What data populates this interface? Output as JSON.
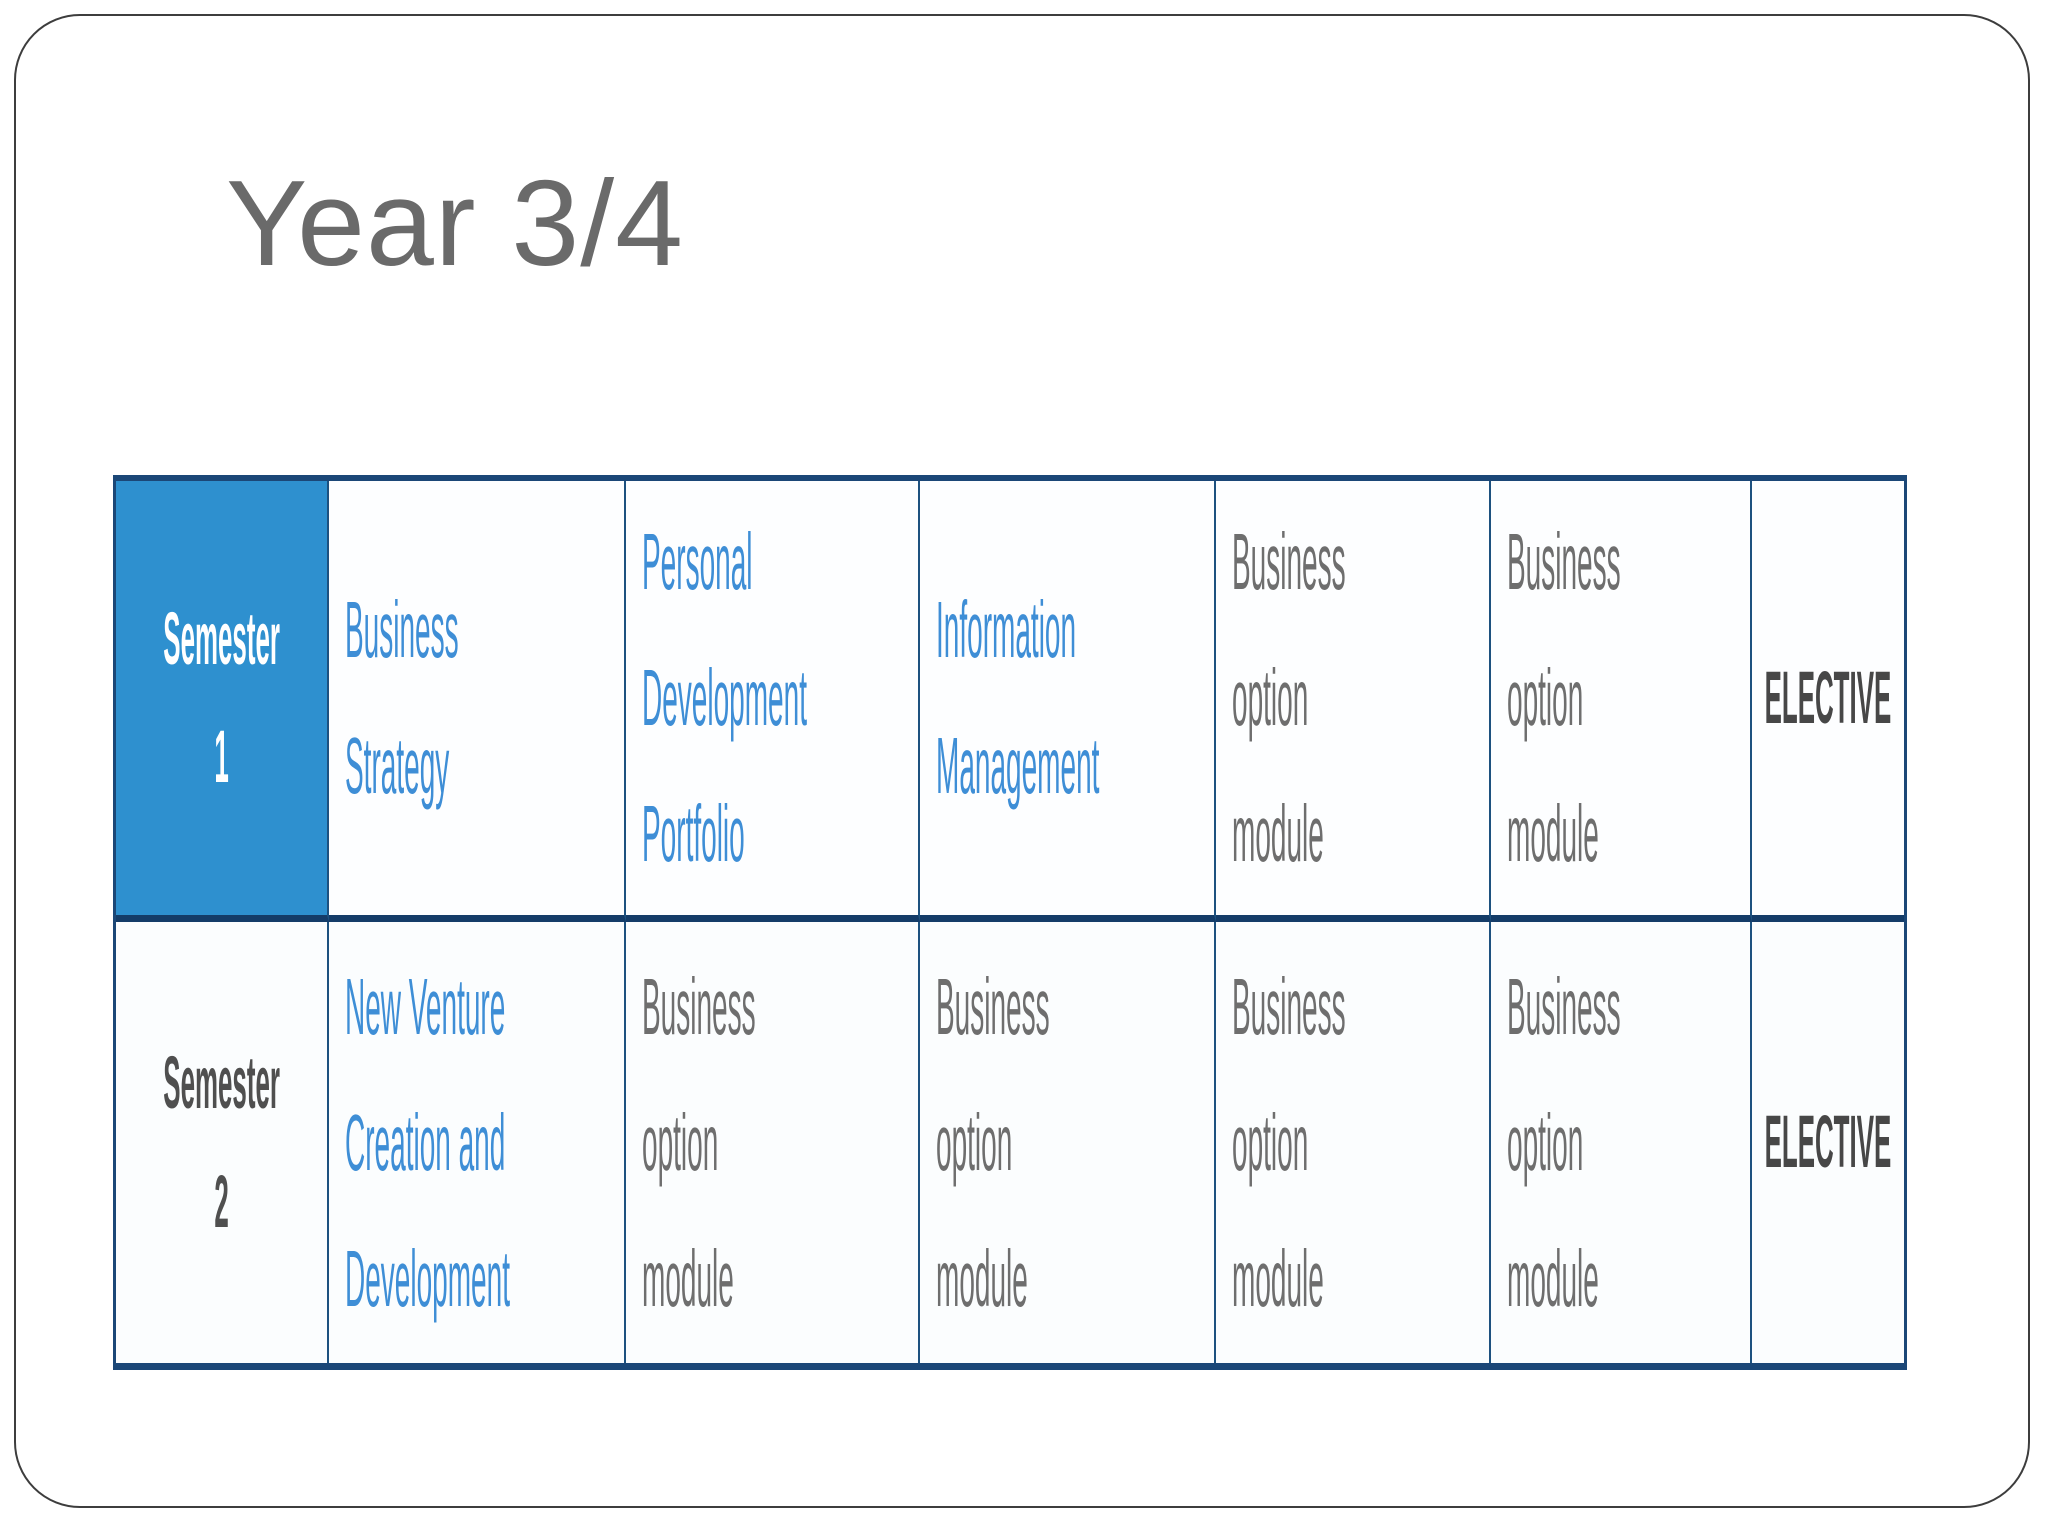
{
  "slide": {
    "title": "Year 3/4"
  },
  "colors": {
    "header_blue": "#2e90cf",
    "module_link_blue": "#3e8ed6",
    "module_text_gray": "#6e6e6e",
    "elective_text": "#474747",
    "table_border_navy": "#16395f",
    "semester2_bg": "#f4f4f3",
    "title_gray": "#6a6a6a"
  },
  "table": {
    "rows": [
      {
        "header": "Semester 1",
        "cells": [
          {
            "text": "Business Strategy"
          },
          {
            "text": "Personal\nDevelopment\nPortfolio"
          },
          {
            "text": "Information\nManagement"
          },
          {
            "text": "Business option\nmodule"
          },
          {
            "text": "Business option\nmodule"
          },
          {
            "text": "ELECTIVE"
          }
        ]
      },
      {
        "header": "Semester 2",
        "cells": [
          {
            "text": "New Venture\nCreation and\nDevelopment"
          },
          {
            "text": "Business option\nmodule"
          },
          {
            "text": "Business option\nmodule"
          },
          {
            "text": "Business option\nmodule"
          },
          {
            "text": "Business option\nmodule"
          },
          {
            "text": "ELECTIVE"
          }
        ]
      }
    ]
  }
}
